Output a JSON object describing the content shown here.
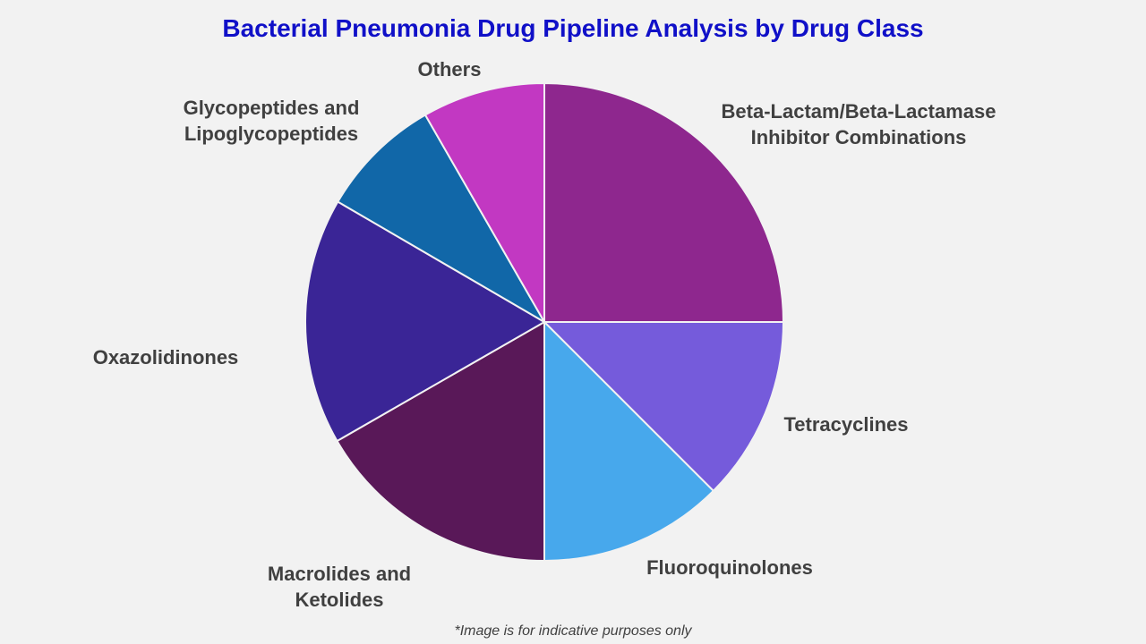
{
  "chart_data": {
    "type": "pie",
    "title": "Bacterial Pneumonia Drug Pipeline Analysis by Drug Class",
    "slices": [
      {
        "label": "Beta-Lactam/Beta-Lactamase Inhibitor Combinations",
        "lines": [
          "Beta-Lactam/Beta-Lactamase",
          "Inhibitor Combinations"
        ],
        "value": 25,
        "color": "#8e278e"
      },
      {
        "label": "Tetracyclines",
        "lines": [
          "Tetracyclines"
        ],
        "value": 12.5,
        "color": "#755bdb"
      },
      {
        "label": "Fluoroquinolones",
        "lines": [
          "Fluoroquinolones"
        ],
        "value": 12.5,
        "color": "#47a8ec"
      },
      {
        "label": "Macrolides and Ketolides",
        "lines": [
          "Macrolides and",
          "Ketolides"
        ],
        "value": 16.7,
        "color": "#591858"
      },
      {
        "label": "Oxazolidinones",
        "lines": [
          "Oxazolidinones"
        ],
        "value": 16.7,
        "color": "#3a2596"
      },
      {
        "label": "Glycopeptides and Lipoglycopeptides",
        "lines": [
          "Glycopeptides and",
          "Lipoglycopeptides"
        ],
        "value": 8.3,
        "color": "#1167a8"
      },
      {
        "label": "Others",
        "lines": [
          "Others"
        ],
        "value": 8.3,
        "color": "#c238c2"
      }
    ]
  },
  "footnote": "*Image is for indicative purposes only"
}
